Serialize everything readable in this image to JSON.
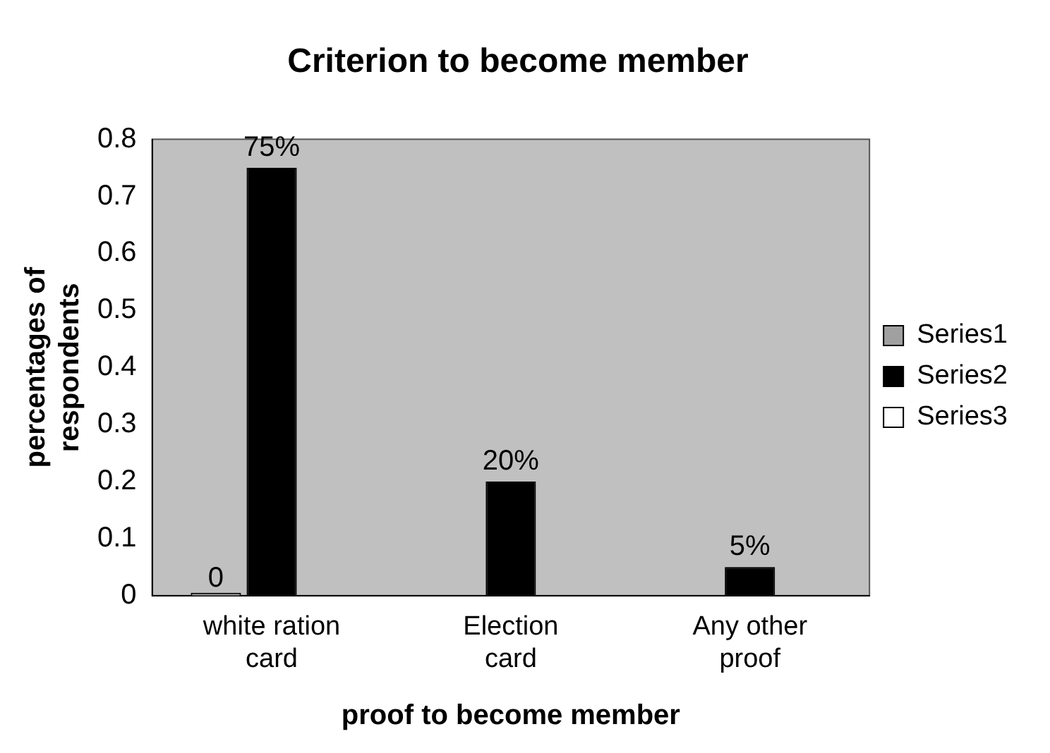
{
  "chart_data": {
    "type": "bar",
    "title": "Criterion to become member",
    "xlabel": "proof to become member",
    "ylabel": "percentages of respondents",
    "categories": [
      "white ration card",
      "Election card",
      "Any other proof"
    ],
    "series": [
      {
        "name": "Series1",
        "color": "#a0a0a0",
        "values": [
          0,
          null,
          null
        ],
        "value_labels": [
          "0",
          null,
          null
        ]
      },
      {
        "name": "Series2",
        "color": "#000000",
        "values": [
          0.75,
          0.2,
          0.05
        ],
        "value_labels": [
          "75%",
          "20%",
          "5%"
        ]
      },
      {
        "name": "Series3",
        "color": "#ffffff",
        "values": [
          null,
          null,
          null
        ]
      }
    ],
    "ylim": [
      0,
      0.8
    ],
    "yticks": [
      0,
      0.1,
      0.2,
      0.3,
      0.4,
      0.5,
      0.6,
      0.7,
      0.8
    ],
    "grid": false,
    "legend": "right"
  }
}
